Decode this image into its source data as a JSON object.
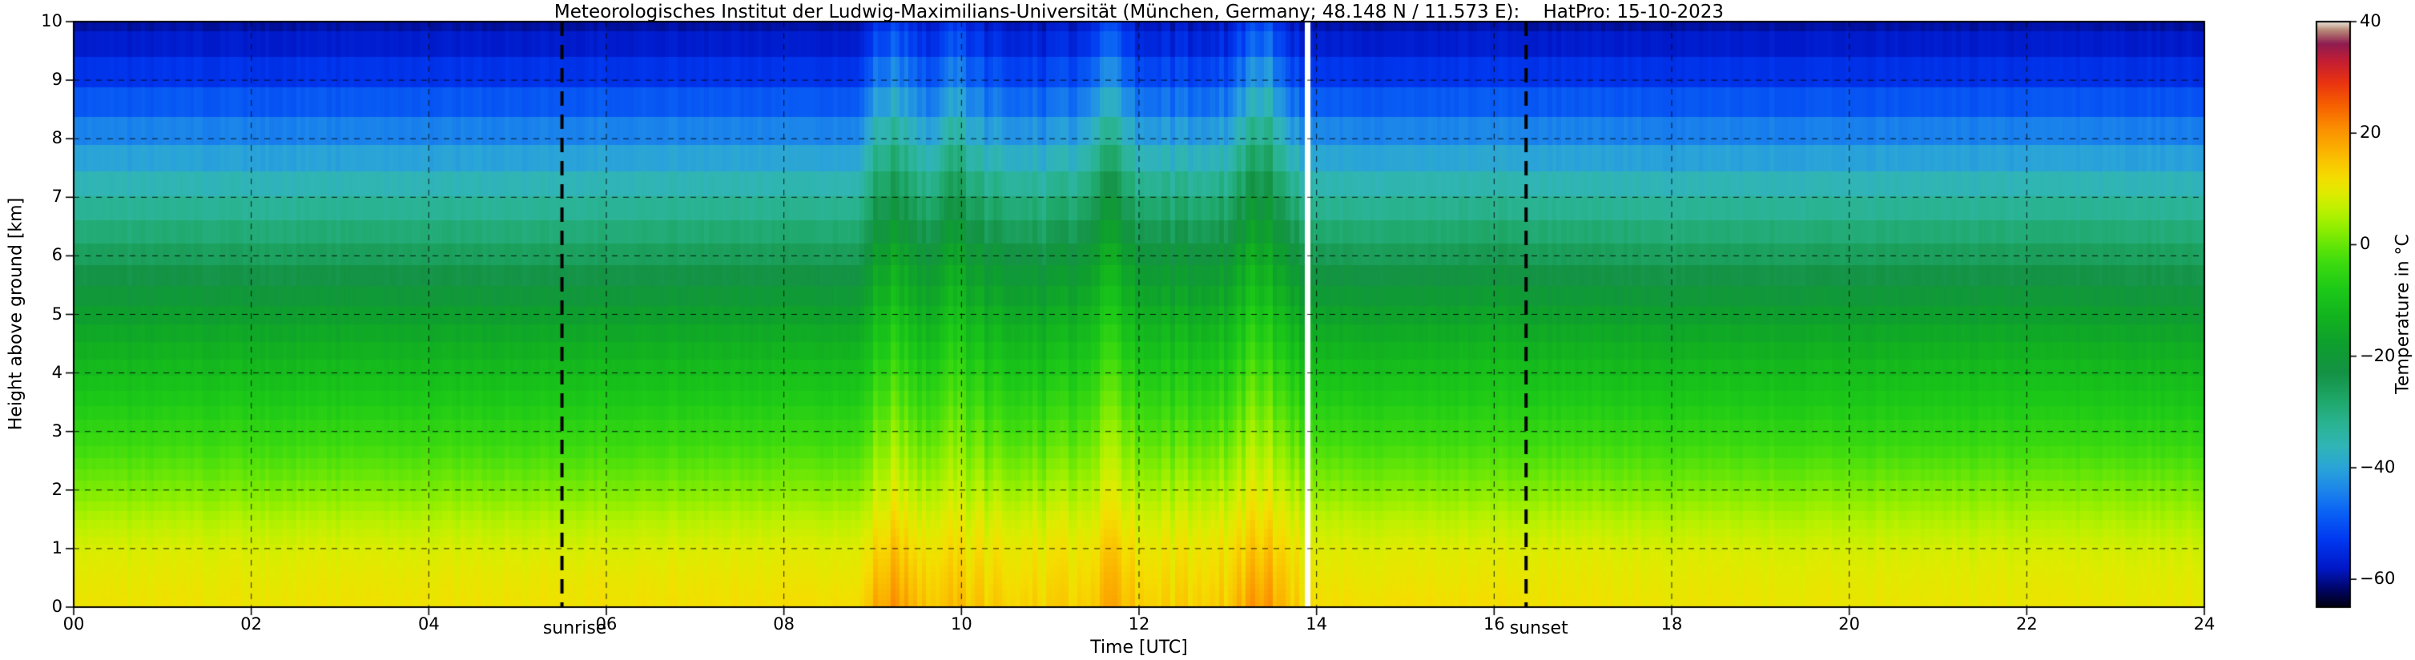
{
  "chart_data": {
    "type": "heatmap",
    "title": "Meteorologisches Institut der Ludwig-Maximilians-Universität (München, Germany; 48.148 N / 11.573 E):    HatPro: 15-10-2023",
    "xlabel": "Time [UTC]",
    "ylabel": "Height above ground [km]",
    "x_range_hours_utc": [
      0,
      24
    ],
    "y_range_km": [
      0,
      10
    ],
    "grid": "dashed",
    "x_ticks": {
      "values": [
        0,
        2,
        4,
        6,
        8,
        10,
        12,
        14,
        16,
        18,
        20,
        22,
        24
      ],
      "labels": [
        "00",
        "02",
        "04",
        "06",
        "08",
        "10",
        "12",
        "14",
        "16",
        "18",
        "20",
        "22",
        "24"
      ]
    },
    "y_ticks": {
      "values": [
        0,
        1,
        2,
        3,
        4,
        5,
        6,
        7,
        8,
        9,
        10
      ],
      "labels": [
        "0",
        "1",
        "2",
        "3",
        "4",
        "5",
        "6",
        "7",
        "8",
        "9",
        "10"
      ]
    },
    "colorbar": {
      "label": "Temperature in °C",
      "vmin": -65,
      "vmax": 40,
      "tick_values": [
        40,
        20,
        0,
        -20,
        -40,
        -60
      ],
      "tick_labels": [
        "40",
        "20",
        "0",
        "−20",
        "−40",
        "−60"
      ]
    },
    "annotations": {
      "sunrise": "sunrise",
      "sunset": "sunset"
    },
    "sunrise_time_utc": 5.5,
    "sunset_time_utc": 16.36,
    "data_gaps_utc": [
      [
        13.86,
        13.93
      ]
    ],
    "disturbed_period_utc": [
      9.0,
      13.85
    ],
    "profile_heights_km": [
      0,
      0.5,
      1,
      1.5,
      2,
      3,
      4,
      5,
      6,
      7,
      8,
      9,
      10
    ],
    "columns": [
      {
        "t": 0.0,
        "temps": [
          11,
          10,
          8.5,
          5.5,
          1.5,
          -5,
          -11,
          -18,
          -26,
          -34,
          -43,
          -53,
          -59.5
        ]
      },
      {
        "t": 3.0,
        "temps": [
          11,
          10,
          8.5,
          5.5,
          1.5,
          -5,
          -11,
          -18,
          -26,
          -34,
          -43.5,
          -53,
          -59.5
        ]
      },
      {
        "t": 6.0,
        "temps": [
          11.5,
          10.5,
          8.5,
          5.5,
          1.5,
          -5,
          -11,
          -18,
          -26,
          -34,
          -43,
          -53,
          -59.5
        ]
      },
      {
        "t": 8.0,
        "temps": [
          12,
          10.5,
          9,
          6,
          2,
          -4.5,
          -10.5,
          -17.5,
          -25.5,
          -33.5,
          -43,
          -53,
          -59.5
        ]
      },
      {
        "t": 8.85,
        "temps": [
          12,
          10.5,
          9,
          6,
          2,
          -4.5,
          -10.5,
          -17.5,
          -25.5,
          -33.5,
          -43,
          -53,
          -59.5
        ]
      },
      {
        "t": 9.0,
        "temps": [
          18,
          15.5,
          13,
          10,
          6.5,
          0.5,
          -5.5,
          -11.5,
          -18,
          -26,
          -34,
          -45,
          -54
        ]
      },
      {
        "t": 9.25,
        "temps": [
          20,
          17.5,
          15,
          12,
          8.5,
          2.5,
          -3.5,
          -9.5,
          -16,
          -24,
          -32,
          -43,
          -52
        ]
      },
      {
        "t": 9.5,
        "temps": [
          17,
          15,
          12.5,
          9.5,
          6,
          0,
          -6,
          -12.5,
          -19,
          -27,
          -36,
          -46,
          -55
        ]
      },
      {
        "t": 9.65,
        "temps": [
          14,
          12.5,
          10.5,
          8,
          4.5,
          -2,
          -8,
          -15,
          -22,
          -30,
          -40,
          -50,
          -58
        ]
      },
      {
        "t": 9.85,
        "temps": [
          15,
          13.5,
          11.5,
          9,
          6,
          0.5,
          -5,
          -11,
          -17.5,
          -25,
          -34,
          -45,
          -54
        ]
      },
      {
        "t": 10.0,
        "temps": [
          16,
          14,
          12,
          9.5,
          6.5,
          1,
          -4.5,
          -10.5,
          -17,
          -24.5,
          -33,
          -44,
          -53
        ]
      },
      {
        "t": 10.15,
        "temps": [
          14,
          12.5,
          10.5,
          8,
          4.5,
          -1.5,
          -7.5,
          -14,
          -21,
          -29,
          -39,
          -49,
          -57
        ]
      },
      {
        "t": 10.5,
        "temps": [
          13,
          11.5,
          10,
          7.5,
          3.5,
          -3,
          -9,
          -15.5,
          -22.5,
          -31,
          -41,
          -51,
          -58.5
        ]
      },
      {
        "t": 10.9,
        "temps": [
          13,
          11.5,
          10,
          7.5,
          3.5,
          -3,
          -9.5,
          -16,
          -23,
          -31.5,
          -41.5,
          -51.5,
          -58.5
        ]
      },
      {
        "t": 11.3,
        "temps": [
          13.5,
          12,
          10.5,
          8,
          4.5,
          -2,
          -8,
          -14.5,
          -21.5,
          -30,
          -40,
          -50,
          -58
        ]
      },
      {
        "t": 11.55,
        "temps": [
          16,
          14.5,
          12.5,
          10,
          7,
          1.5,
          -4,
          -10,
          -16.5,
          -24,
          -33,
          -44,
          -53
        ]
      },
      {
        "t": 11.75,
        "temps": [
          17,
          15.5,
          13.5,
          10.5,
          7.5,
          2,
          -3.5,
          -9.5,
          -16,
          -23.5,
          -32.5,
          -43.5,
          -52.5
        ]
      },
      {
        "t": 11.95,
        "temps": [
          14.5,
          13,
          11,
          8.5,
          5,
          -1,
          -7,
          -13.5,
          -20.5,
          -29,
          -39,
          -49.5,
          -57.5
        ]
      },
      {
        "t": 12.3,
        "temps": [
          13,
          11.5,
          10,
          7.5,
          4,
          -2.5,
          -8.5,
          -15,
          -22,
          -30.5,
          -40.5,
          -51,
          -58.5
        ]
      },
      {
        "t": 12.7,
        "temps": [
          13.5,
          12,
          10.5,
          8,
          4.5,
          -2,
          -8,
          -15,
          -22,
          -30.5,
          -40.5,
          -51,
          -58.5
        ]
      },
      {
        "t": 13.0,
        "temps": [
          14,
          12.5,
          11,
          8.5,
          5,
          -1.5,
          -7.5,
          -14,
          -21,
          -29.5,
          -39.5,
          -50,
          -58
        ]
      },
      {
        "t": 13.25,
        "temps": [
          19,
          16.5,
          14,
          11.5,
          8.5,
          3,
          -2.5,
          -8.5,
          -15,
          -22.5,
          -31.5,
          -42.5,
          -52
        ]
      },
      {
        "t": 13.45,
        "temps": [
          20,
          17.5,
          15,
          12,
          9,
          3,
          -3,
          -9,
          -15.5,
          -22,
          -30,
          -40,
          -50
        ]
      },
      {
        "t": 13.65,
        "temps": [
          15,
          13.5,
          11.5,
          9,
          5.5,
          -0.5,
          -6.5,
          -13,
          -20,
          -28.5,
          -38.5,
          -49,
          -57
        ]
      },
      {
        "t": 13.8,
        "temps": [
          13,
          11.5,
          10,
          7.5,
          4,
          -2.5,
          -9,
          -16,
          -23,
          -31.5,
          -41.5,
          -51.5,
          -58.5
        ]
      },
      {
        "t": 14.0,
        "temps": [
          12,
          10.5,
          9,
          6.5,
          2.5,
          -4,
          -10,
          -17,
          -25,
          -33.5,
          -42.5,
          -52.5,
          -59
        ]
      },
      {
        "t": 15.0,
        "temps": [
          12,
          10.5,
          9,
          6,
          2,
          -4.5,
          -10.5,
          -17.5,
          -25.5,
          -33.5,
          -43,
          -53,
          -59.5
        ]
      },
      {
        "t": 16.2,
        "temps": [
          12,
          10.5,
          9,
          6,
          2,
          -4.5,
          -10,
          -16.5,
          -24.5,
          -33,
          -42.5,
          -52.5,
          -59
        ]
      },
      {
        "t": 16.45,
        "temps": [
          11.5,
          10.5,
          9,
          6,
          2,
          -4.5,
          -10.5,
          -17.5,
          -25.5,
          -33.5,
          -43,
          -53,
          -59.5
        ]
      },
      {
        "t": 18.0,
        "temps": [
          11,
          10,
          8.5,
          5.5,
          1.5,
          -5,
          -11,
          -18,
          -26,
          -34,
          -43.5,
          -53,
          -59.5
        ]
      },
      {
        "t": 21.0,
        "temps": [
          10.5,
          9.5,
          8,
          5,
          1.5,
          -5.5,
          -11,
          -18,
          -26,
          -34,
          -43.5,
          -53.5,
          -59.5
        ]
      },
      {
        "t": 24.0,
        "temps": [
          10.5,
          9.5,
          8,
          5,
          1.5,
          -5.5,
          -11.5,
          -18.5,
          -26,
          -34,
          -43.5,
          -53.5,
          -59.5
        ]
      }
    ],
    "colormap_stops": [
      [
        -65,
        "#000010"
      ],
      [
        -62,
        "#000460"
      ],
      [
        -58,
        "#0018c8"
      ],
      [
        -53,
        "#0038f0"
      ],
      [
        -48,
        "#0a62f5"
      ],
      [
        -44,
        "#1c86ea"
      ],
      [
        -40,
        "#2aa4d8"
      ],
      [
        -36,
        "#30b5b5"
      ],
      [
        -32,
        "#2ab391"
      ],
      [
        -28,
        "#1fa86a"
      ],
      [
        -23,
        "#149245"
      ],
      [
        -18,
        "#0e9e2e"
      ],
      [
        -13,
        "#12b31f"
      ],
      [
        -8,
        "#1cc917"
      ],
      [
        -3,
        "#3fdc0e"
      ],
      [
        0,
        "#66e607"
      ],
      [
        3,
        "#90ee00"
      ],
      [
        6,
        "#b9f100"
      ],
      [
        9,
        "#ddec00"
      ],
      [
        12,
        "#f5dd00"
      ],
      [
        15,
        "#fac400"
      ],
      [
        18,
        "#fba800"
      ],
      [
        21,
        "#fb8d00"
      ],
      [
        25,
        "#f66000"
      ],
      [
        29,
        "#ea3410"
      ],
      [
        33,
        "#c21d34"
      ],
      [
        36,
        "#8f1c50"
      ],
      [
        38.5,
        "#b88a78"
      ],
      [
        40,
        "#e9e6da"
      ]
    ],
    "axis_color": "#000000",
    "background_color": "#ffffff"
  }
}
